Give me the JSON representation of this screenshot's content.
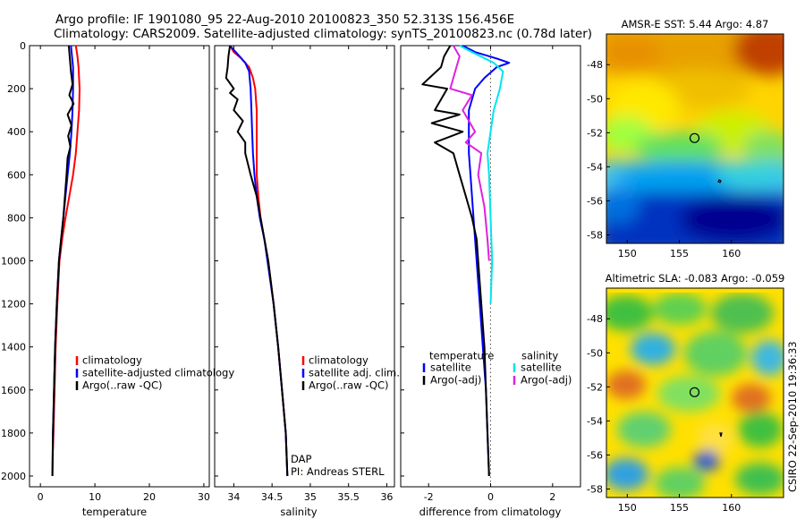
{
  "figure": {
    "title_line1": "Argo profile: IF 1901080_95 22-Aug-2010 20100823_350 52.313S 156.456E",
    "title_line2": "Climatology: CARS2009. Satellite-adjusted climatology: synTS_20100823.nc (0.78d later)",
    "credit_side": "CSIRO 22-Sep-2010 19:36:33"
  },
  "colors": {
    "climatology": "#ff0000",
    "satellite": "#0000ff",
    "argo": "#000000",
    "salinity_satellite": "#00e5ee",
    "salinity_argo": "#e020e0",
    "zero_line": "#555555"
  },
  "chart_data": [
    {
      "type": "line",
      "xlabel": "temperature",
      "xlim": [
        -2,
        31
      ],
      "xticks": [
        0,
        10,
        20,
        30
      ],
      "ylim": [
        0,
        2050
      ],
      "y_reversed": true,
      "yticks": [
        0,
        200,
        400,
        600,
        800,
        1000,
        1200,
        1400,
        1600,
        1800,
        2000
      ],
      "legend": [
        "climatology",
        "satellite-adjusted climatology",
        "Argo(..raw -QC)"
      ],
      "legend_placement": "lower-left",
      "series": [
        {
          "name": "climatology",
          "color": "#ff0000",
          "points": [
            [
              6.5,
              0
            ],
            [
              6.8,
              50
            ],
            [
              7.0,
              100
            ],
            [
              7.2,
              200
            ],
            [
              7.1,
              300
            ],
            [
              6.8,
              400
            ],
            [
              6.5,
              500
            ],
            [
              6.0,
              600
            ],
            [
              5.3,
              700
            ],
            [
              4.6,
              800
            ],
            [
              4.0,
              900
            ],
            [
              3.5,
              1000
            ],
            [
              3.1,
              1200
            ],
            [
              2.8,
              1400
            ],
            [
              2.6,
              1600
            ],
            [
              2.4,
              1800
            ],
            [
              2.3,
              1880
            ]
          ]
        },
        {
          "name": "satellite-adjusted climatology",
          "color": "#0000ff",
          "points": [
            [
              5.6,
              0
            ],
            [
              5.8,
              50
            ],
            [
              6.0,
              100
            ],
            [
              6.0,
              200
            ],
            [
              5.9,
              300
            ],
            [
              5.7,
              400
            ],
            [
              5.4,
              500
            ],
            [
              5.0,
              600
            ],
            [
              4.6,
              700
            ],
            [
              4.2,
              800
            ],
            [
              3.8,
              900
            ],
            [
              3.4,
              1000
            ],
            [
              3.0,
              1200
            ],
            [
              2.7,
              1400
            ],
            [
              2.5,
              1600
            ],
            [
              2.3,
              1800
            ],
            [
              2.2,
              2000
            ]
          ]
        },
        {
          "name": "Argo(..raw -QC)",
          "color": "#000000",
          "points": [
            [
              5.2,
              0
            ],
            [
              5.4,
              60
            ],
            [
              5.6,
              120
            ],
            [
              5.9,
              180
            ],
            [
              5.3,
              230
            ],
            [
              6.1,
              270
            ],
            [
              5.0,
              320
            ],
            [
              5.7,
              370
            ],
            [
              5.1,
              420
            ],
            [
              5.5,
              470
            ],
            [
              5.0,
              520
            ],
            [
              4.8,
              600
            ],
            [
              4.5,
              700
            ],
            [
              4.2,
              800
            ],
            [
              3.8,
              900
            ],
            [
              3.4,
              1000
            ],
            [
              3.0,
              1200
            ],
            [
              2.7,
              1400
            ],
            [
              2.5,
              1600
            ],
            [
              2.3,
              1800
            ],
            [
              2.2,
              2000
            ]
          ]
        }
      ]
    },
    {
      "type": "line",
      "xlabel": "salinity",
      "xlim": [
        33.75,
        36.1
      ],
      "xticks": [
        34,
        34.5,
        35,
        35.5,
        36
      ],
      "ylim": [
        0,
        2050
      ],
      "y_reversed": true,
      "legend": [
        "climatology",
        "satellite adj. clim.",
        "Argo(..raw -QC)"
      ],
      "legend_placement": "lower-right",
      "annotation_line1": "DAP",
      "annotation_line2": "PI: Andreas STERL",
      "series": [
        {
          "name": "climatology",
          "color": "#ff0000",
          "points": [
            [
              33.95,
              0
            ],
            [
              34.0,
              30
            ],
            [
              34.1,
              60
            ],
            [
              34.2,
              100
            ],
            [
              34.25,
              150
            ],
            [
              34.28,
              200
            ],
            [
              34.3,
              300
            ],
            [
              34.3,
              400
            ],
            [
              34.3,
              500
            ],
            [
              34.3,
              600
            ],
            [
              34.32,
              700
            ],
            [
              34.35,
              800
            ],
            [
              34.4,
              900
            ],
            [
              34.45,
              1000
            ],
            [
              34.52,
              1200
            ],
            [
              34.58,
              1400
            ],
            [
              34.63,
              1600
            ],
            [
              34.68,
              1800
            ],
            [
              34.7,
              2000
            ]
          ]
        },
        {
          "name": "satellite adj. clim.",
          "color": "#0000ff",
          "points": [
            [
              33.95,
              0
            ],
            [
              34.05,
              40
            ],
            [
              34.15,
              80
            ],
            [
              34.2,
              120
            ],
            [
              34.22,
              200
            ],
            [
              34.23,
              300
            ],
            [
              34.24,
              400
            ],
            [
              34.25,
              500
            ],
            [
              34.27,
              600
            ],
            [
              34.3,
              700
            ],
            [
              34.34,
              800
            ],
            [
              34.4,
              900
            ],
            [
              34.44,
              1000
            ],
            [
              34.52,
              1200
            ],
            [
              34.58,
              1400
            ],
            [
              34.63,
              1600
            ],
            [
              34.68,
              1800
            ],
            [
              34.7,
              2000
            ]
          ]
        },
        {
          "name": "Argo(..raw -QC)",
          "color": "#000000",
          "points": [
            [
              33.95,
              0
            ],
            [
              33.93,
              50
            ],
            [
              33.92,
              100
            ],
            [
              33.9,
              150
            ],
            [
              34.0,
              200
            ],
            [
              33.95,
              220
            ],
            [
              34.05,
              250
            ],
            [
              34.0,
              300
            ],
            [
              34.12,
              350
            ],
            [
              34.05,
              400
            ],
            [
              34.15,
              450
            ],
            [
              34.15,
              500
            ],
            [
              34.22,
              600
            ],
            [
              34.3,
              700
            ],
            [
              34.35,
              800
            ],
            [
              34.4,
              900
            ],
            [
              34.45,
              1000
            ],
            [
              34.52,
              1200
            ],
            [
              34.58,
              1400
            ],
            [
              34.63,
              1600
            ],
            [
              34.68,
              1800
            ],
            [
              34.7,
              2000
            ]
          ]
        }
      ]
    },
    {
      "type": "line",
      "xlabel": "difference from climatology",
      "xlim": [
        -2.9,
        2.9
      ],
      "xticks": [
        -2,
        0,
        2
      ],
      "ylim": [
        0,
        2050
      ],
      "y_reversed": true,
      "zero_line": true,
      "legend_group1_title": "temperature",
      "legend_group1": [
        "satellite",
        "Argo(-adj)"
      ],
      "legend_group2_title": "salinity",
      "legend_group2": [
        "satellite",
        "Argo(-adj)"
      ],
      "series": [
        {
          "name": "temperature satellite",
          "color": "#0000ff",
          "points": [
            [
              -0.9,
              0
            ],
            [
              -0.5,
              30
            ],
            [
              0.2,
              60
            ],
            [
              0.6,
              80
            ],
            [
              0.2,
              100
            ],
            [
              -0.2,
              150
            ],
            [
              -0.5,
              200
            ],
            [
              -0.7,
              300
            ],
            [
              -0.7,
              400
            ],
            [
              -0.7,
              500
            ],
            [
              -0.65,
              600
            ],
            [
              -0.55,
              800
            ],
            [
              -0.45,
              1000
            ],
            [
              -0.35,
              1200
            ],
            [
              -0.25,
              1400
            ],
            [
              -0.15,
              1600
            ],
            [
              -0.1,
              1800
            ],
            [
              -0.05,
              2000
            ]
          ]
        },
        {
          "name": "temperature Argo(-adj)",
          "color": "#000000",
          "points": [
            [
              -1.3,
              0
            ],
            [
              -1.5,
              50
            ],
            [
              -1.6,
              100
            ],
            [
              -2.2,
              180
            ],
            [
              -1.4,
              200
            ],
            [
              -1.8,
              300
            ],
            [
              -1.0,
              320
            ],
            [
              -1.9,
              360
            ],
            [
              -0.9,
              400
            ],
            [
              -1.8,
              450
            ],
            [
              -1.2,
              500
            ],
            [
              -1.0,
              600
            ],
            [
              -0.8,
              700
            ],
            [
              -0.6,
              800
            ],
            [
              -0.45,
              900
            ],
            [
              -0.4,
              1000
            ],
            [
              -0.3,
              1200
            ],
            [
              -0.2,
              1400
            ],
            [
              -0.15,
              1600
            ],
            [
              -0.1,
              1800
            ],
            [
              -0.05,
              2000
            ]
          ]
        },
        {
          "name": "salinity satellite",
          "color": "#00e5ee",
          "points": [
            [
              -1.0,
              0
            ],
            [
              -0.6,
              30
            ],
            [
              0.1,
              80
            ],
            [
              0.4,
              120
            ],
            [
              0.3,
              200
            ],
            [
              0.1,
              300
            ],
            [
              0.0,
              400
            ],
            [
              -0.1,
              500
            ],
            [
              -0.05,
              600
            ],
            [
              0.0,
              800
            ],
            [
              0.05,
              1000
            ],
            [
              0.0,
              1200
            ]
          ]
        },
        {
          "name": "salinity Argo(-adj)",
          "color": "#e020e0",
          "points": [
            [
              -1.2,
              0
            ],
            [
              -1.0,
              50
            ],
            [
              -1.3,
              200
            ],
            [
              -0.6,
              230
            ],
            [
              -0.9,
              300
            ],
            [
              -0.5,
              400
            ],
            [
              -0.8,
              450
            ],
            [
              -0.3,
              500
            ],
            [
              -0.4,
              600
            ],
            [
              -0.2,
              750
            ],
            [
              -0.1,
              900
            ],
            [
              -0.05,
              1000
            ]
          ]
        }
      ]
    },
    {
      "type": "heatmap",
      "title": "AMSR-E SST: 5.44 Argo: 4.87",
      "xticks": [
        150,
        155,
        160
      ],
      "yticks": [
        -48,
        -50,
        -52,
        -54,
        -56,
        -58
      ],
      "xlim": [
        148,
        165
      ],
      "ylim": [
        -58.5,
        -46.2
      ],
      "profile_marker": {
        "lon": 156.456,
        "lat": -52.313
      }
    },
    {
      "type": "heatmap",
      "title": "Altimetric SLA: -0.083 Argo: -0.059",
      "xticks": [
        150,
        155,
        160
      ],
      "yticks": [
        -48,
        -50,
        -52,
        -54,
        -56,
        -58
      ],
      "xlim": [
        148,
        165
      ],
      "ylim": [
        -58.5,
        -46.2
      ],
      "profile_marker": {
        "lon": 156.456,
        "lat": -52.313
      }
    }
  ]
}
